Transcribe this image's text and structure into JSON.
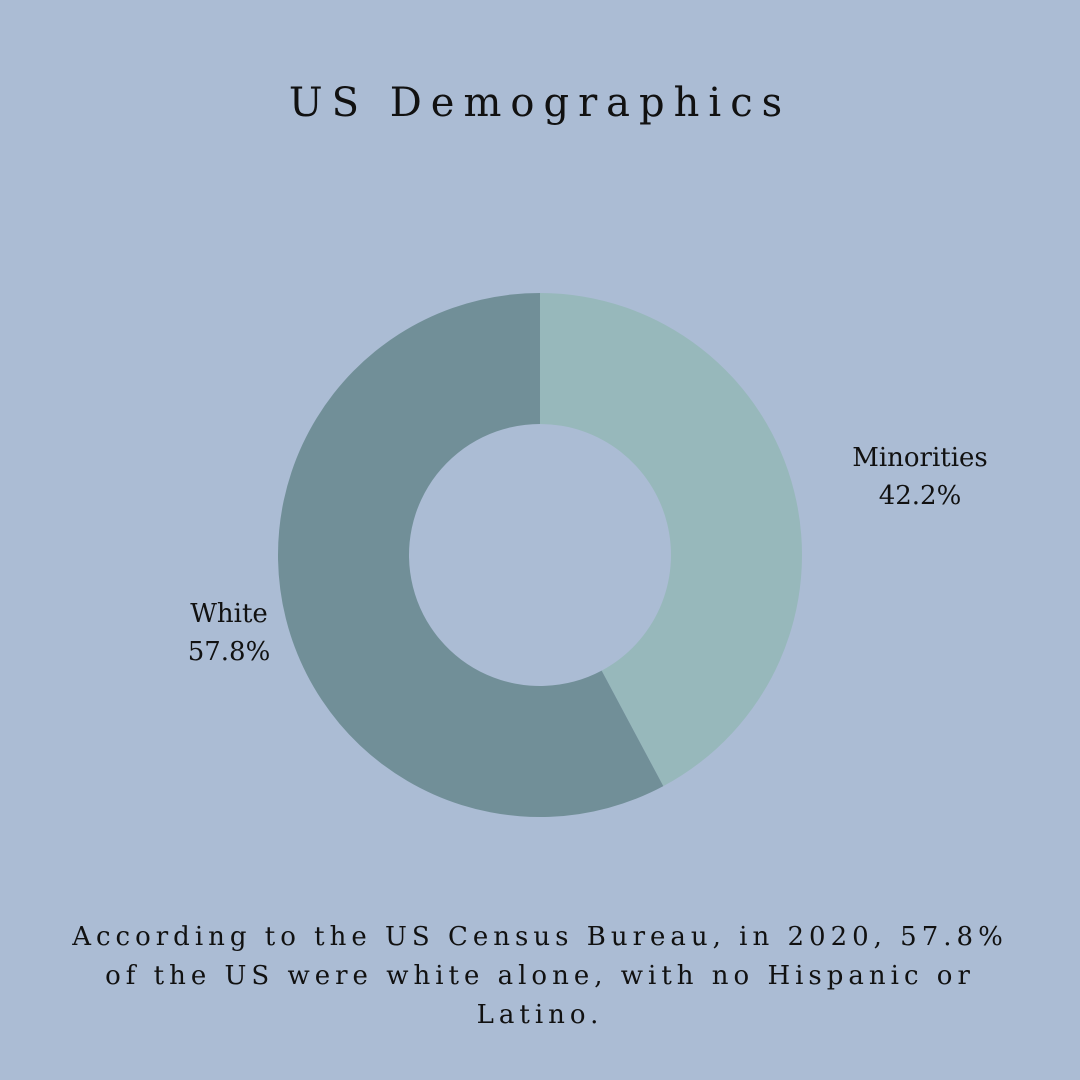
{
  "title": "US Demographics",
  "caption": "According to the US Census Bureau, in 2020, 57.8% of the US were white alone, with no Hispanic or Latino.",
  "colors": {
    "background": "#abbcd4",
    "minorities": "#97b8bb",
    "white": "#718f98",
    "text": "#111111"
  },
  "chart_data": {
    "type": "pie",
    "style": "donut",
    "title": "US Demographics",
    "start_angle_deg": 0,
    "direction": "clockwise",
    "slices": [
      {
        "label": "Minorities",
        "value": 42.2,
        "display": "42.2%",
        "color": "#97b8bb"
      },
      {
        "label": "White",
        "value": 57.8,
        "display": "57.8%",
        "color": "#718f98"
      }
    ]
  }
}
